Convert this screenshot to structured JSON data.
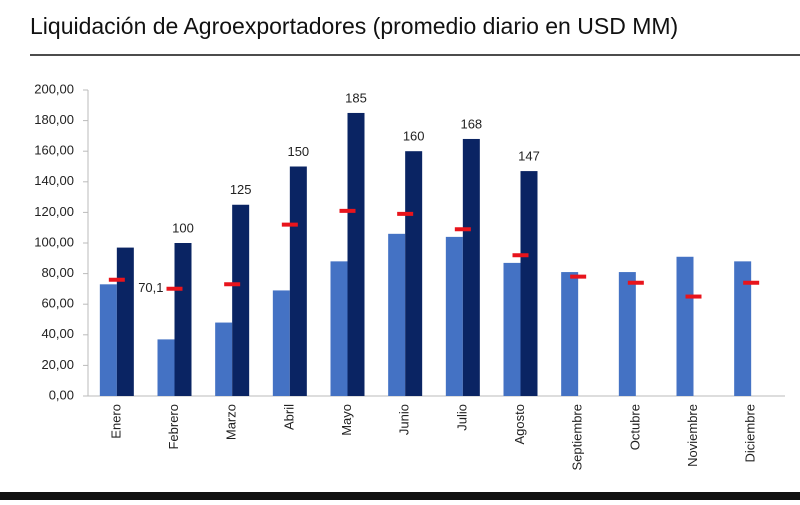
{
  "chart_data": {
    "type": "bar",
    "title": "Liquidación de Agroexportadores (promedio diario en USD MM)",
    "categories": [
      "Enero",
      "Febrero",
      "Marzo",
      "Abril",
      "Mayo",
      "Junio",
      "Julio",
      "Agosto",
      "Septiembre",
      "Octubre",
      "Noviembre",
      "Diciembre"
    ],
    "series": [
      {
        "type": "bar",
        "color": "#4472c4",
        "values": [
          73,
          37,
          48,
          69,
          88,
          106,
          104,
          87,
          81,
          81,
          91,
          88
        ]
      },
      {
        "type": "bar",
        "color": "#0a2463",
        "values": [
          97,
          100,
          125,
          150,
          185,
          160,
          168,
          147,
          null,
          null,
          null,
          null
        ],
        "value_labels": [
          null,
          "100",
          "125",
          "150",
          "185",
          "160",
          "168",
          "147",
          null,
          null,
          null,
          null
        ]
      },
      {
        "type": "marker",
        "color": "#e8141c",
        "values": [
          76,
          70.1,
          73,
          112,
          121,
          119,
          109,
          92,
          78,
          74,
          65,
          74
        ],
        "value_labels": [
          null,
          "70,1",
          null,
          null,
          null,
          null,
          null,
          null,
          null,
          null,
          null,
          null
        ]
      }
    ],
    "ylim": [
      0,
      200
    ],
    "yticks": [
      {
        "value": 0,
        "label": "0,00"
      },
      {
        "value": 20,
        "label": "20,00"
      },
      {
        "value": 40,
        "label": "40,00"
      },
      {
        "value": 60,
        "label": "60,00"
      },
      {
        "value": 80,
        "label": "80,00"
      },
      {
        "value": 100,
        "label": "100,00"
      },
      {
        "value": 120,
        "label": "120,00"
      },
      {
        "value": 140,
        "label": "140,00"
      },
      {
        "value": 160,
        "label": "160,00"
      },
      {
        "value": 180,
        "label": "180,00"
      },
      {
        "value": 200,
        "label": "200,00"
      }
    ],
    "grid": false
  }
}
